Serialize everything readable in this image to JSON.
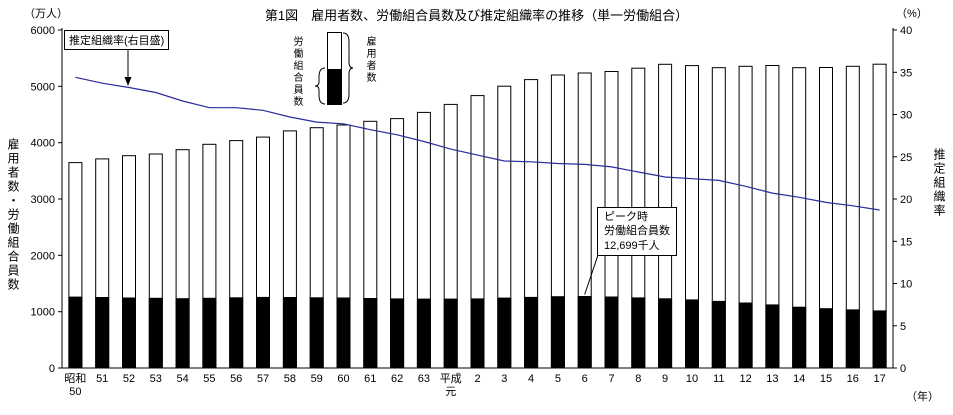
{
  "chart": {
    "title": "第1図　雇用者数、労働組合員数及び推定組織率の推移（単一労働組合）",
    "left_unit": "（万人）",
    "right_unit": "（%）",
    "x_unit": "（年）",
    "left_axis_label": "雇用者数・労働組合員数",
    "right_axis_label": "推定組織率",
    "rate_annotation": "推定組織率(右目盛)",
    "legend": {
      "union_label": "労働組合員数",
      "employee_label": "雇用者数"
    },
    "callout": {
      "line1": "ピーク時",
      "line2": "労働組合員数",
      "line3": "12,699千人"
    }
  },
  "chart_data": {
    "type": "bar+line",
    "title": "第1図　雇用者数、労働組合員数及び推定組織率の推移（単一労働組合）",
    "categories": [
      "昭和50",
      "51",
      "52",
      "53",
      "54",
      "55",
      "56",
      "57",
      "58",
      "59",
      "60",
      "61",
      "62",
      "63",
      "平成元",
      "2",
      "3",
      "4",
      "5",
      "6",
      "7",
      "8",
      "9",
      "10",
      "11",
      "12",
      "13",
      "14",
      "15",
      "16",
      "17"
    ],
    "x_tick_lines": [
      [
        "昭和",
        "50"
      ],
      [
        "51"
      ],
      [
        "52"
      ],
      [
        "53"
      ],
      [
        "54"
      ],
      [
        "55"
      ],
      [
        "56"
      ],
      [
        "57"
      ],
      [
        "58"
      ],
      [
        "59"
      ],
      [
        "60"
      ],
      [
        "61"
      ],
      [
        "62"
      ],
      [
        "63"
      ],
      [
        "平成",
        "元"
      ],
      [
        "2"
      ],
      [
        "3"
      ],
      [
        "4"
      ],
      [
        "5"
      ],
      [
        "6"
      ],
      [
        "7"
      ],
      [
        "8"
      ],
      [
        "9"
      ],
      [
        "10"
      ],
      [
        "11"
      ],
      [
        "12"
      ],
      [
        "13"
      ],
      [
        "14"
      ],
      [
        "15"
      ],
      [
        "16"
      ],
      [
        "17"
      ]
    ],
    "series": [
      {
        "name": "雇用者数",
        "type": "bar",
        "axis": "left",
        "values": [
          3646,
          3712,
          3769,
          3799,
          3876,
          3971,
          4037,
          4098,
          4208,
          4265,
          4313,
          4379,
          4428,
          4538,
          4679,
          4835,
          5002,
          5119,
          5202,
          5236,
          5263,
          5322,
          5391,
          5368,
          5331,
          5356,
          5369,
          5331,
          5335,
          5355,
          5393
        ]
      },
      {
        "name": "労働組合員数",
        "type": "bar",
        "axis": "left",
        "values": [
          1259,
          1251,
          1243,
          1238,
          1231,
          1237,
          1247,
          1253,
          1252,
          1246,
          1242,
          1234,
          1227,
          1223,
          1223,
          1227,
          1240,
          1254,
          1266,
          1270,
          1261,
          1245,
          1228,
          1209,
          1183,
          1154,
          1121,
          1080,
          1053,
          1031,
          1014
        ]
      },
      {
        "name": "推定組織率",
        "type": "line",
        "axis": "right",
        "values": [
          34.4,
          33.7,
          33.2,
          32.6,
          31.6,
          30.8,
          30.8,
          30.5,
          29.7,
          29.1,
          28.9,
          28.2,
          27.6,
          26.8,
          25.9,
          25.2,
          24.5,
          24.4,
          24.2,
          24.1,
          23.8,
          23.2,
          22.6,
          22.4,
          22.2,
          21.5,
          20.7,
          20.2,
          19.6,
          19.2,
          18.7
        ]
      }
    ],
    "left_axis": {
      "label": "雇用者数・労働組合員数",
      "unit": "万人",
      "min": 0,
      "max": 6000,
      "step": 1000
    },
    "right_axis": {
      "label": "推定組織率",
      "unit": "%",
      "min": 0,
      "max": 40,
      "step": 5
    },
    "annotations": {
      "rate_pointer": "推定組織率(右目盛)",
      "peak": {
        "text": "ピーク時 労働組合員数 12,699千人",
        "target_category": "6"
      }
    },
    "grid": false,
    "legend_position": "top-center"
  }
}
